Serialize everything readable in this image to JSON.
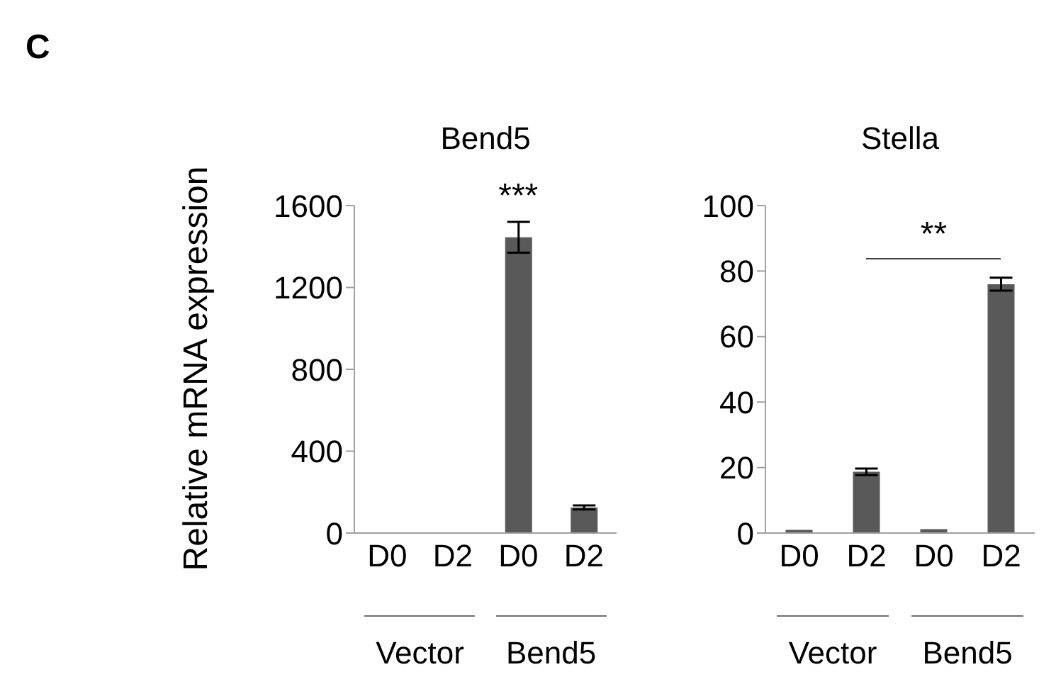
{
  "chart_data": [
    {
      "type": "bar",
      "title": "Bend5",
      "ylabel": "Relative mRNA expression",
      "categories": [
        "D0",
        "D2",
        "D0",
        "D2"
      ],
      "values": [
        1,
        1,
        1445,
        125
      ],
      "errors": [
        null,
        null,
        75,
        10
      ],
      "color": "#595959",
      "ylim": [
        0,
        1600
      ],
      "yticks": [
        0,
        400,
        800,
        1200,
        1600
      ],
      "grid": false,
      "annotations": [
        "C",
        "***",
        "Vector",
        "Bend5"
      ]
    },
    {
      "type": "bar",
      "title": "Stella",
      "categories": [
        "D0",
        "D2",
        "D0",
        "D2"
      ],
      "values": [
        1,
        18.7,
        1.2,
        76
      ],
      "errors": [
        null,
        1,
        null,
        2
      ],
      "color": "#595959",
      "ylim": [
        0,
        100
      ],
      "yticks": [
        0,
        20,
        40,
        60,
        80,
        100
      ],
      "grid": false,
      "annotations": [
        "**",
        "Vector",
        "Bend5"
      ]
    }
  ]
}
